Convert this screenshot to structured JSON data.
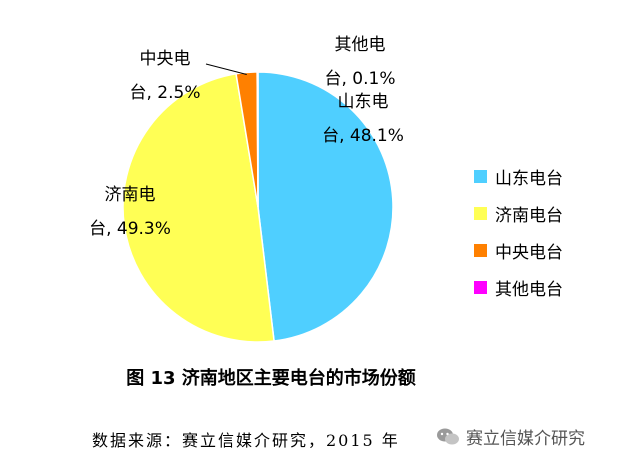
{
  "chart_data": {
    "type": "pie",
    "title": "图 13 济南地区主要电台的市场份额",
    "slices": [
      {
        "name": "山东电台",
        "value": 48.1,
        "color": "#4FCFFF",
        "label_lines": [
          "山东电",
          "台, 48.1%"
        ]
      },
      {
        "name": "济南电台",
        "value": 49.3,
        "color": "#FFFF55",
        "label_lines": [
          "济南电",
          "台, 49.3%"
        ]
      },
      {
        "name": "中央电台",
        "value": 2.5,
        "color": "#FF8000",
        "label_lines": [
          "中央电",
          "台, 2.5%"
        ]
      },
      {
        "name": "其他电台",
        "value": 0.1,
        "color": "#FF00FF",
        "label_lines": [
          "其他电",
          "台, 0.1%"
        ]
      }
    ],
    "legend_position": "right"
  },
  "source": "数据来源：赛立信媒介研究，2015 年",
  "watermark": "赛立信媒介研究"
}
